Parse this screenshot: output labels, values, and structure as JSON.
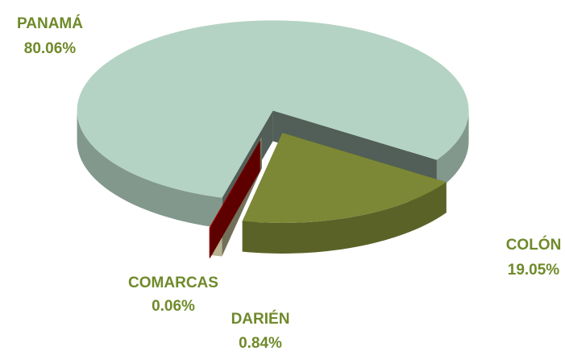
{
  "chart_data": {
    "type": "pie3d",
    "categories": [
      "PANAMÁ",
      "COLÓN",
      "DARIÉN",
      "COMARCAS"
    ],
    "values": [
      80.06,
      19.05,
      0.84,
      0.06
    ],
    "value_labels": [
      "80.06%",
      "19.05%",
      "0.84%",
      "0.06%"
    ],
    "colors": [
      "#b4d3c4",
      "#7d8836",
      "#fff8c8",
      "#d40000"
    ]
  }
}
